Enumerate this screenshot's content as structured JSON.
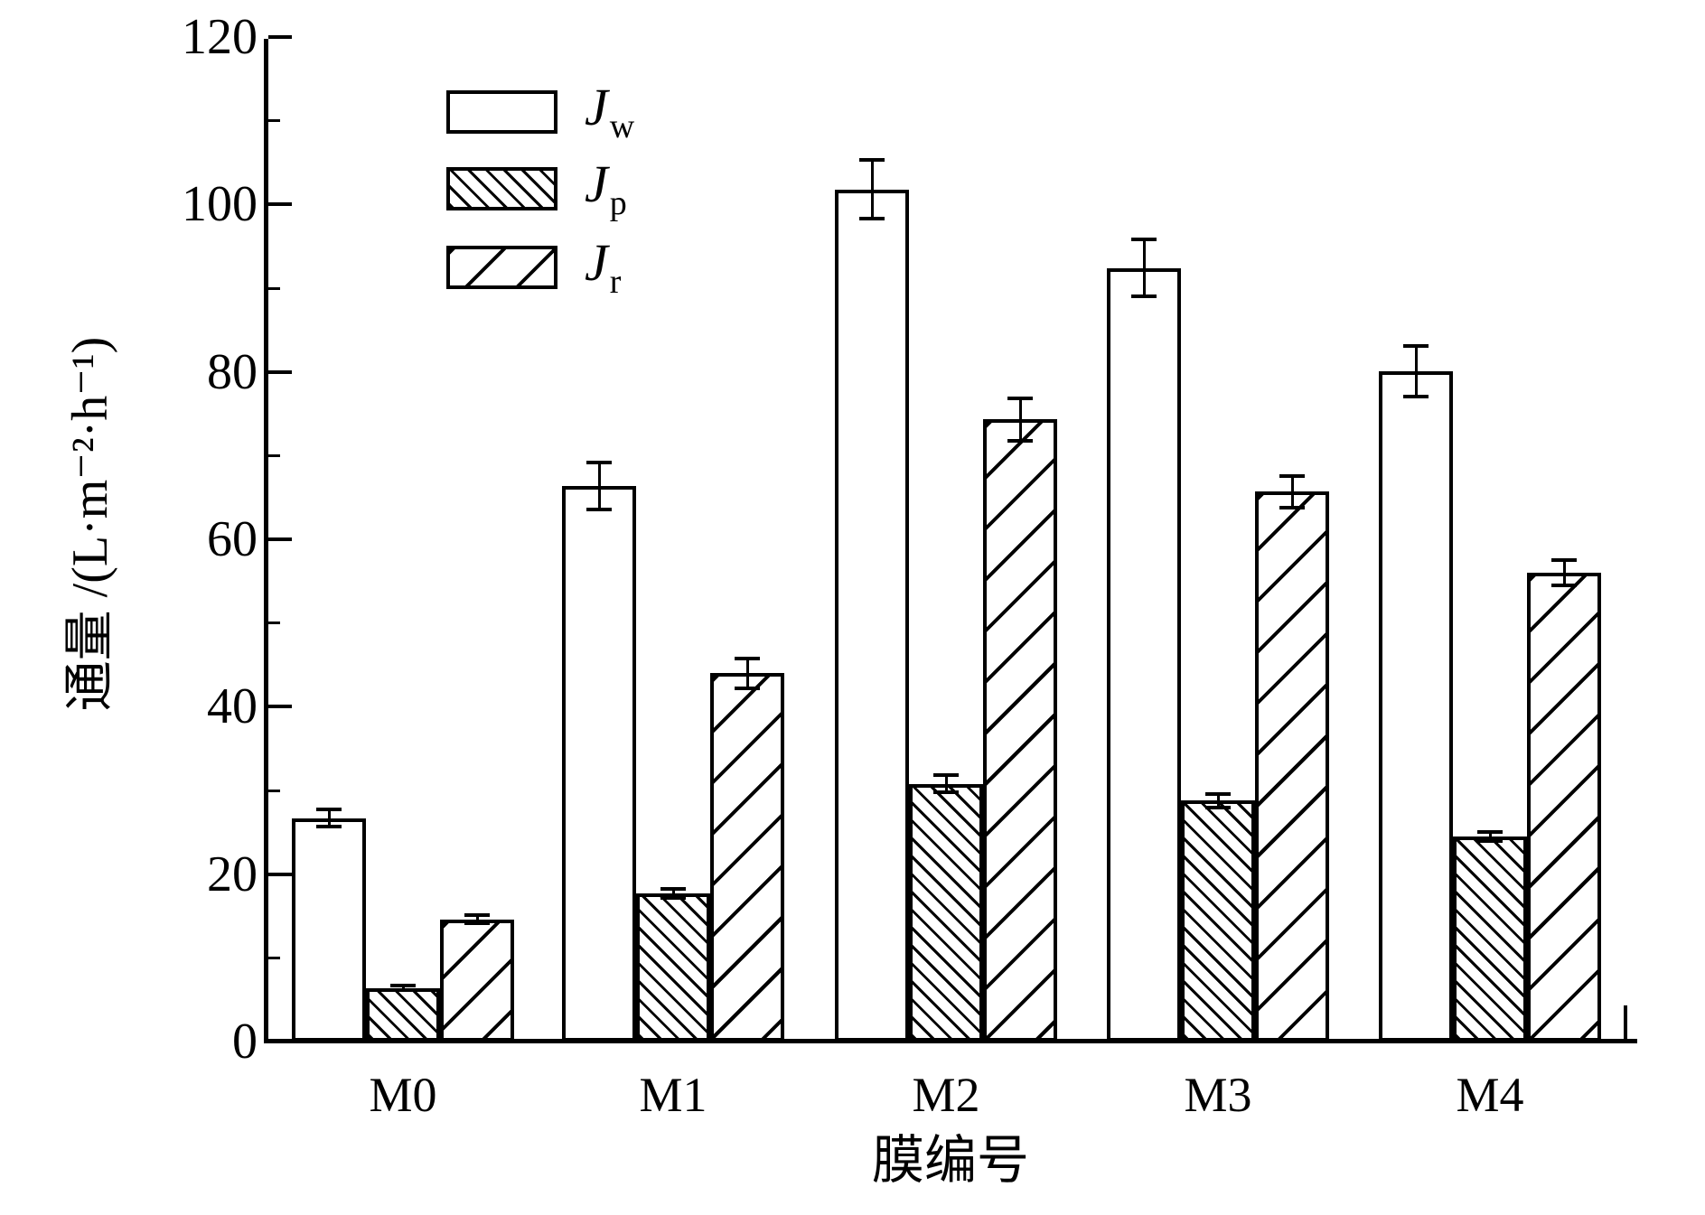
{
  "chart_data": {
    "type": "bar",
    "title": "",
    "xlabel": "膜编号",
    "ylabel": "通量 /(L·m⁻²·h⁻¹)",
    "categories": [
      "M0",
      "M1",
      "M2",
      "M3",
      "M4"
    ],
    "series": [
      {
        "name": "Jw",
        "label_main": "J",
        "label_sub": "w",
        "pattern": "solid-white",
        "values": [
          26.7,
          66.4,
          101.8,
          92.4,
          80.1
        ],
        "errors": [
          1.0,
          2.8,
          3.5,
          3.4,
          3.0
        ]
      },
      {
        "name": "Jp",
        "label_main": "J",
        "label_sub": "p",
        "pattern": "hatch-backslash",
        "values": [
          6.4,
          17.7,
          30.8,
          28.8,
          24.5
        ],
        "errors": [
          0.3,
          0.5,
          1.0,
          0.8,
          0.5
        ]
      },
      {
        "name": "Jr",
        "label_main": "J",
        "label_sub": "r",
        "pattern": "hatch-slash",
        "values": [
          14.6,
          44.0,
          74.3,
          65.7,
          56.0
        ],
        "errors": [
          0.5,
          1.8,
          2.5,
          1.9,
          1.5
        ]
      }
    ],
    "y_axis": {
      "min": 0,
      "max": 120,
      "major_step": 20,
      "minor_step": 10,
      "major_ticks": [
        0,
        20,
        40,
        60,
        80,
        100,
        120
      ],
      "minor_ticks": [
        10,
        30,
        50,
        70,
        90,
        110
      ]
    },
    "legend_position": "upper-left",
    "grid": false,
    "error_bars": true,
    "colors": {
      "foreground": "#000000",
      "background": "#ffffff"
    }
  }
}
